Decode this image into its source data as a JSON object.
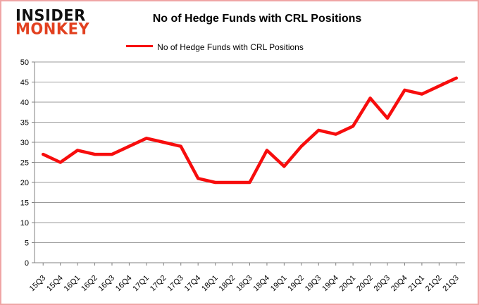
{
  "logo": {
    "line1": "INSIDER",
    "line2": "MONKEY"
  },
  "header": {
    "title": "No of Hedge Funds with CRL Positions"
  },
  "legend": {
    "label": "No of Hedge Funds with CRL Positions"
  },
  "chart_data": {
    "type": "line",
    "title": "No of Hedge Funds with CRL Positions",
    "categories": [
      "15Q3",
      "15Q4",
      "16Q1",
      "16Q2",
      "16Q3",
      "16Q4",
      "17Q1",
      "17Q2",
      "17Q3",
      "17Q4",
      "18Q1",
      "18Q2",
      "18Q3",
      "18Q4",
      "19Q1",
      "19Q2",
      "19Q3",
      "19Q4",
      "20Q1",
      "20Q2",
      "20Q3",
      "20Q4",
      "21Q1",
      "21Q2",
      "21Q3"
    ],
    "series": [
      {
        "name": "No of Hedge Funds with CRL Positions",
        "color": "#f70d0d",
        "values": [
          27,
          25,
          28,
          27,
          27,
          29,
          31,
          30,
          29,
          21,
          20,
          20,
          20,
          28,
          24,
          29,
          33,
          32,
          34,
          41,
          36,
          43,
          42,
          44,
          46
        ]
      }
    ],
    "xlabel": "",
    "ylabel": "",
    "ylim": [
      0,
      50
    ],
    "yticks": [
      0,
      5,
      10,
      15,
      20,
      25,
      30,
      35,
      40,
      45,
      50
    ],
    "grid": true,
    "legend_position": "top"
  },
  "colors": {
    "line": "#f70d0d",
    "gridline": "#9b9b9b",
    "axis": "#808080",
    "tick_label": "#000000",
    "logo_monkey": "#e2401f",
    "border": "#efa5a5"
  }
}
